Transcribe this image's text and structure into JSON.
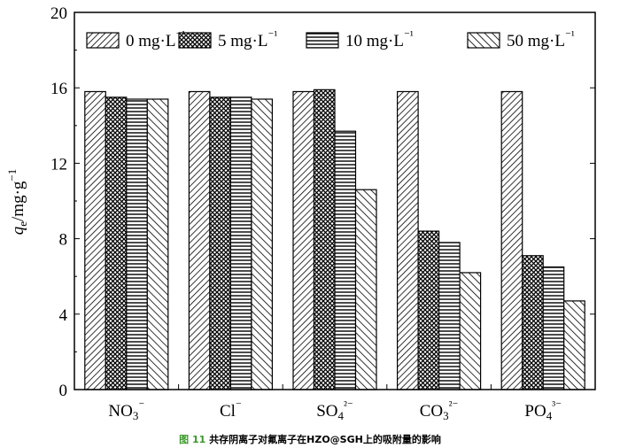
{
  "chart_data": {
    "type": "bar",
    "categories": [
      "NO3⁻",
      "Cl⁻",
      "SO4²⁻",
      "CO3²⁻",
      "PO4³⁻"
    ],
    "series": [
      {
        "name": "0 mg·L⁻¹",
        "pattern": "diag-forward",
        "values": [
          15.8,
          15.8,
          15.8,
          15.8,
          15.8
        ]
      },
      {
        "name": "5 mg·L⁻¹",
        "pattern": "crosshatch",
        "values": [
          15.5,
          15.5,
          15.9,
          8.4,
          7.1
        ]
      },
      {
        "name": "10 mg·L⁻¹",
        "pattern": "horizontal",
        "values": [
          15.4,
          15.5,
          13.7,
          7.8,
          6.5
        ]
      },
      {
        "name": "50 mg·L⁻¹",
        "pattern": "diag-back",
        "values": [
          15.4,
          15.4,
          10.6,
          6.2,
          4.7
        ]
      }
    ],
    "title": "",
    "xlabel": "",
    "ylabel": "qe/mg·g⁻¹",
    "ylim": [
      0,
      20
    ],
    "yticks": [
      "0",
      "4",
      "8",
      "12",
      "16",
      "20"
    ],
    "legend_placement": "top",
    "grid": false
  },
  "caption": {
    "label": "图 11",
    "text": "共存阴离子对氟离子在HZO@SGH上的吸附量的影响",
    "label_color": "#3a9a2a"
  }
}
